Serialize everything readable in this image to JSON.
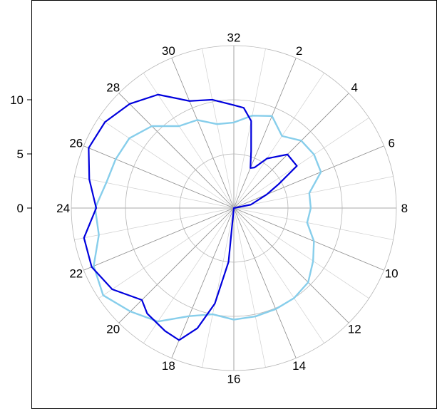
{
  "chart_data": {
    "type": "line",
    "subtype": "polar",
    "title": "",
    "angular_axis": {
      "direction": "clockwise",
      "rotation": "32 at top",
      "period": 32,
      "ticks": [
        "32",
        "2",
        "4",
        "6",
        "8",
        "10",
        "12",
        "14",
        "16",
        "18",
        "20",
        "22",
        "24",
        "26",
        "28",
        "30"
      ],
      "minor_spokes": 32
    },
    "radial_axis": {
      "range": [
        0,
        15
      ],
      "ticks": [
        0,
        5,
        10
      ],
      "tick_labels": [
        "0",
        "5",
        "10"
      ],
      "grid": [
        5,
        10,
        15
      ]
    },
    "series": [
      {
        "color": "#0000dd",
        "points": [
          {
            "a": 0,
            "r": 9.5
          },
          {
            "a": 0.5,
            "r": 9.3
          },
          {
            "a": 1,
            "r": 8.2
          },
          {
            "a": 1.5,
            "r": 5.5
          },
          {
            "a": 2,
            "r": 4.0
          },
          {
            "a": 2.4,
            "r": 4.2
          },
          {
            "a": 3,
            "r": 5.5
          },
          {
            "a": 4,
            "r": 7.0
          },
          {
            "a": 5,
            "r": 7.0
          },
          {
            "a": 5.5,
            "r": 4.7
          },
          {
            "a": 6,
            "r": 3.3
          },
          {
            "a": 7,
            "r": 1.6
          },
          {
            "a": 8,
            "r": 0
          },
          {
            "a": 12,
            "r": 0
          },
          {
            "a": 16,
            "r": 0
          },
          {
            "a": 16.5,
            "r": 5.0
          },
          {
            "a": 17,
            "r": 9.0
          },
          {
            "a": 17.5,
            "r": 11.6
          },
          {
            "a": 18,
            "r": 13.2
          },
          {
            "a": 18.6,
            "r": 13.0
          },
          {
            "a": 19.5,
            "r": 12.6
          },
          {
            "a": 20,
            "r": 12.0
          },
          {
            "a": 21,
            "r": 13.5
          },
          {
            "a": 22,
            "r": 14.2
          },
          {
            "a": 23,
            "r": 14.1
          },
          {
            "a": 24,
            "r": 12.7
          },
          {
            "a": 25,
            "r": 13.6
          },
          {
            "a": 26,
            "r": 14.5
          },
          {
            "a": 27,
            "r": 14.3
          },
          {
            "a": 28,
            "r": 13.6
          },
          {
            "a": 29,
            "r": 12.6
          },
          {
            "a": 30,
            "r": 10.7
          },
          {
            "a": 31,
            "r": 10.2
          },
          {
            "a": 32,
            "r": 9.5
          }
        ]
      },
      {
        "color": "#87ceeb",
        "points": [
          {
            "a": 0,
            "r": 7.9
          },
          {
            "a": 1,
            "r": 8.7
          },
          {
            "a": 2,
            "r": 9.2
          },
          {
            "a": 3,
            "r": 8.0
          },
          {
            "a": 4,
            "r": 8.8
          },
          {
            "a": 5,
            "r": 8.9
          },
          {
            "a": 6,
            "r": 8.7
          },
          {
            "a": 7,
            "r": 7.1
          },
          {
            "a": 8,
            "r": 7.1
          },
          {
            "a": 9,
            "r": 6.9
          },
          {
            "a": 10,
            "r": 8.0
          },
          {
            "a": 11,
            "r": 8.8
          },
          {
            "a": 12,
            "r": 9.7
          },
          {
            "a": 13,
            "r": 10.0
          },
          {
            "a": 14,
            "r": 10.1
          },
          {
            "a": 15,
            "r": 10.2
          },
          {
            "a": 16,
            "r": 10.3
          },
          {
            "a": 17,
            "r": 10.0
          },
          {
            "a": 18,
            "r": 10.8
          },
          {
            "a": 19,
            "r": 12.6
          },
          {
            "a": 20,
            "r": 13.5
          },
          {
            "a": 21,
            "r": 14.5
          },
          {
            "a": 22,
            "r": 14.0
          },
          {
            "a": 23,
            "r": 12.7
          },
          {
            "a": 24,
            "r": 12.8
          },
          {
            "a": 25,
            "r": 12.0
          },
          {
            "a": 26,
            "r": 11.8
          },
          {
            "a": 27,
            "r": 11.6
          },
          {
            "a": 28,
            "r": 10.7
          },
          {
            "a": 29,
            "r": 9.1
          },
          {
            "a": 30,
            "r": 8.8
          },
          {
            "a": 31,
            "r": 7.9
          },
          {
            "a": 32,
            "r": 7.9
          }
        ]
      }
    ]
  }
}
